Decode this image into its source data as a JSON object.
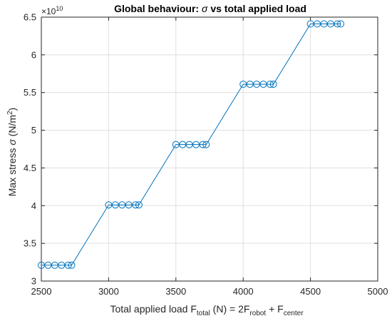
{
  "chart_data": {
    "type": "line",
    "title_prefix": "Global behaviour: ",
    "title_symbol": "σ",
    "title_suffix": " vs total applied load",
    "xlabel_base": "Total applied load F",
    "xlabel_sub1": "total",
    "xlabel_mid": " (N) = 2F",
    "xlabel_sub2": "robot",
    "xlabel_plus": " + F",
    "xlabel_sub3": "center",
    "ylabel_base": "Max stress ",
    "ylabel_symbol": "σ",
    "ylabel_unit": " (N/m",
    "ylabel_sup": "2",
    "ylabel_close": ")",
    "y_exponent_base": "×10",
    "y_exponent_power": "10",
    "xlim": [
      2500,
      5000
    ],
    "ylim": [
      3.0,
      6.5
    ],
    "y_scale_factor": 10000000000,
    "xticks": [
      "2500",
      "3000",
      "3500",
      "4000",
      "4500",
      "5000"
    ],
    "yticks": [
      "3",
      "3.5",
      "4",
      "4.5",
      "5",
      "5.5",
      "6",
      "6.5"
    ],
    "grid": true,
    "line_color": "#0072bd",
    "marker": "circle",
    "series": [
      {
        "x": [
          2500,
          2550,
          2600,
          2650,
          2700,
          2725,
          3000,
          3050,
          3100,
          3150,
          3200,
          3225,
          3500,
          3550,
          3600,
          3650,
          3700,
          3725,
          4000,
          4050,
          4100,
          4150,
          4200,
          4225,
          4500,
          4550,
          4600,
          4650,
          4700,
          4725
        ],
        "y": [
          3.21,
          3.21,
          3.21,
          3.21,
          3.21,
          3.21,
          4.01,
          4.01,
          4.01,
          4.01,
          4.01,
          4.01,
          4.81,
          4.81,
          4.81,
          4.81,
          4.81,
          4.81,
          5.61,
          5.61,
          5.61,
          5.61,
          5.61,
          5.61,
          6.41,
          6.41,
          6.41,
          6.41,
          6.41,
          6.41
        ]
      }
    ]
  }
}
